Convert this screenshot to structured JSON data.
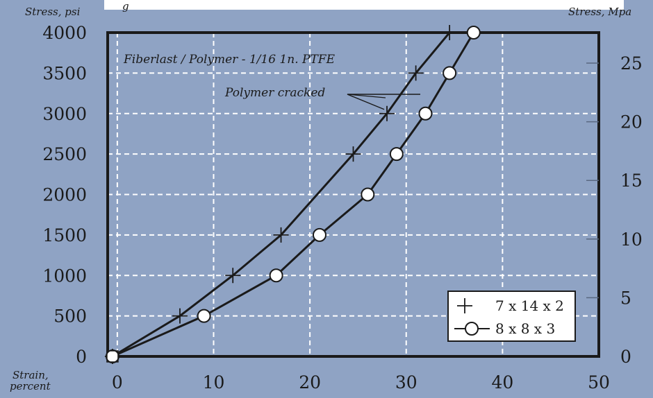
{
  "chart_data": {
    "type": "line",
    "title": "Fiberlast / Polymer - 1/16 1n. PTFE",
    "left_axis_label": "Stress, psi",
    "right_axis_label": "Stress, Mpa",
    "x_axis_label": "Strain, percent",
    "x_axis_label_lines": [
      "Strain,",
      "percent"
    ],
    "xlim": [
      -1,
      50
    ],
    "ylim": [
      0,
      4000
    ],
    "ylim_right_mpa": [
      0,
      27.6
    ],
    "x_ticks": [
      0,
      10,
      20,
      30,
      40,
      50
    ],
    "y_ticks": [
      0,
      500,
      1000,
      1500,
      2000,
      2500,
      3000,
      3500,
      4000
    ],
    "y_right_ticks": [
      0,
      5,
      10,
      15,
      20,
      25
    ],
    "grid": true,
    "legend_position": "bottom-right",
    "annotations": [
      {
        "text": "Polymer cracked"
      }
    ],
    "top_fragment_text": "g",
    "series": [
      {
        "name": "7 x 14 x 2",
        "marker": "plus",
        "x": [
          -0.5,
          6.5,
          12,
          17,
          24.5,
          28,
          31,
          34.5
        ],
        "y": [
          0,
          500,
          1000,
          1500,
          2500,
          3000,
          3500,
          4000
        ]
      },
      {
        "name": "8 x 8 x 3",
        "marker": "circle",
        "x": [
          -0.5,
          9,
          16.5,
          21,
          26,
          29,
          32,
          34.5,
          37
        ],
        "y": [
          0,
          500,
          1000,
          1500,
          2000,
          2500,
          3000,
          3500,
          4000
        ]
      }
    ]
  },
  "colors": {
    "background": "#8fa3c4",
    "plot_area": "#8fa3c4",
    "grid": "#ffffff",
    "line": "#1a1a1a",
    "legend_bg": "#ffffff"
  }
}
